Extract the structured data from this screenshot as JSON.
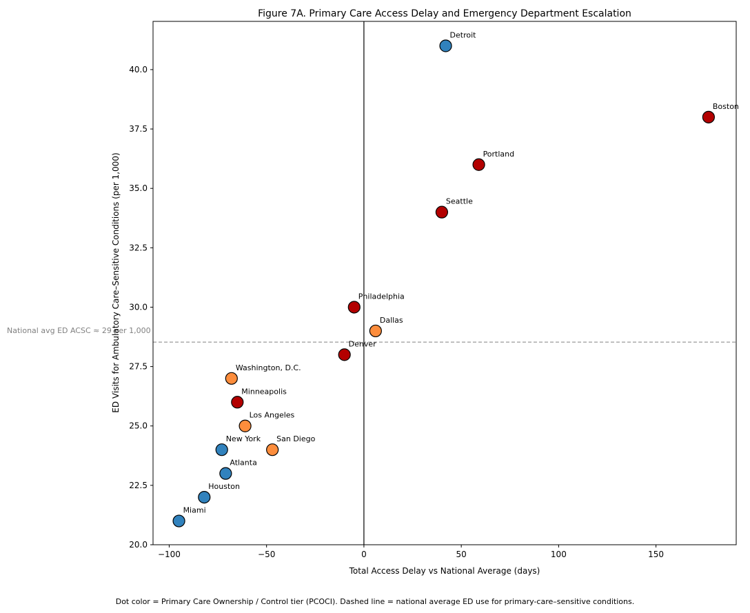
{
  "chart_data": {
    "type": "scatter",
    "title": "Figure 7A. Primary Care Access Delay and Emergency Department Escalation",
    "xlabel": "Total Access Delay vs National Average (days)",
    "ylabel": "ED Visits for Ambulatory Care–Sensitive Conditions (per 1,000)",
    "xlim": [
      -108.3,
      191.2
    ],
    "ylim": [
      20,
      42.03
    ],
    "xticks": [
      -100,
      -50,
      0,
      50,
      100,
      150
    ],
    "xtick_labels": [
      "−100",
      "−50",
      "0",
      "50",
      "100",
      "150"
    ],
    "yticks": [
      20,
      22.5,
      25,
      27.5,
      30,
      32.5,
      35,
      37.5,
      40
    ],
    "ytick_labels": [
      "20.0",
      "22.5",
      "25.0",
      "27.5",
      "30.0",
      "32.5",
      "35.0",
      "37.5",
      "40.0"
    ],
    "vline_x": 0,
    "hline_y": 28.53,
    "hline_label": "National avg ED ACSC ≈ 29 per 1,000",
    "tier_colors": {
      "blue": "#3182bd",
      "orange": "#fd8d3c",
      "red": "#b30000"
    },
    "points": [
      {
        "label": "Detroit",
        "x": 42,
        "y": 41,
        "tier": "blue"
      },
      {
        "label": "Boston",
        "x": 177,
        "y": 38,
        "tier": "red"
      },
      {
        "label": "Portland",
        "x": 59,
        "y": 36,
        "tier": "red"
      },
      {
        "label": "Seattle",
        "x": 40,
        "y": 34,
        "tier": "red"
      },
      {
        "label": "Philadelphia",
        "x": -5,
        "y": 30,
        "tier": "red"
      },
      {
        "label": "Dallas",
        "x": 6,
        "y": 29,
        "tier": "orange"
      },
      {
        "label": "Denver",
        "x": -10,
        "y": 28,
        "tier": "red"
      },
      {
        "label": "Washington, D.C.",
        "x": -68,
        "y": 27,
        "tier": "orange"
      },
      {
        "label": "Minneapolis",
        "x": -65,
        "y": 26,
        "tier": "red"
      },
      {
        "label": "Los Angeles",
        "x": -61,
        "y": 25,
        "tier": "orange"
      },
      {
        "label": "New York",
        "x": -73,
        "y": 24,
        "tier": "blue"
      },
      {
        "label": "San Diego",
        "x": -47,
        "y": 24,
        "tier": "orange"
      },
      {
        "label": "Atlanta",
        "x": -71,
        "y": 23,
        "tier": "blue"
      },
      {
        "label": "Houston",
        "x": -82,
        "y": 22,
        "tier": "blue"
      },
      {
        "label": "Miami",
        "x": -95,
        "y": 21,
        "tier": "blue"
      }
    ],
    "footnote": "Dot color = Primary Care Ownership / Control tier (PCOCI). Dashed line = national average ED use for primary-care–sensitive conditions."
  }
}
